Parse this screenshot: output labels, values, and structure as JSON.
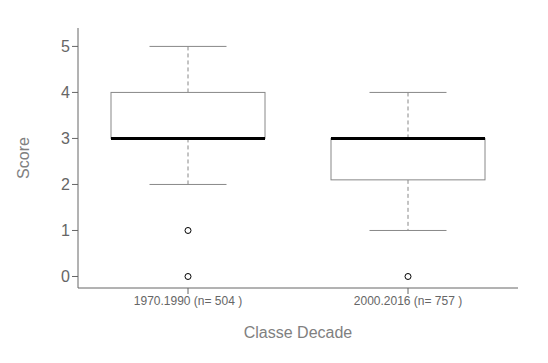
{
  "chart_data": {
    "type": "box",
    "xlabel": "Classe Decade",
    "ylabel": "Score",
    "categories": [
      "1970.1990 (n= 504 )",
      "2000.2016 (n= 757 )"
    ],
    "boxes": [
      {
        "median": 3,
        "q1": 3,
        "q3": 4,
        "whisker_low": 2,
        "whisker_high": 5,
        "outliers": [
          0,
          1
        ]
      },
      {
        "median": 3,
        "q1": 2.1,
        "q3": 3,
        "whisker_low": 1,
        "whisker_high": 4,
        "outliers": [
          0
        ]
      }
    ],
    "ylim": [
      -0.25,
      5.4
    ],
    "yticks": [
      0,
      1,
      2,
      3,
      4,
      5
    ],
    "color": "#888888"
  }
}
